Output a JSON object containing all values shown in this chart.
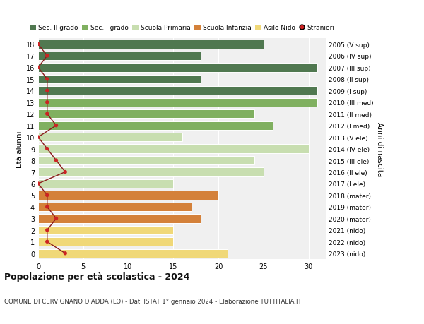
{
  "ages": [
    18,
    17,
    16,
    15,
    14,
    13,
    12,
    11,
    10,
    9,
    8,
    7,
    6,
    5,
    4,
    3,
    2,
    1,
    0
  ],
  "right_labels": [
    "2005 (V sup)",
    "2006 (IV sup)",
    "2007 (III sup)",
    "2008 (II sup)",
    "2009 (I sup)",
    "2010 (III med)",
    "2011 (II med)",
    "2012 (I med)",
    "2013 (V ele)",
    "2014 (IV ele)",
    "2015 (III ele)",
    "2016 (II ele)",
    "2017 (I ele)",
    "2018 (mater)",
    "2019 (mater)",
    "2020 (mater)",
    "2021 (nido)",
    "2022 (nido)",
    "2023 (nido)"
  ],
  "bar_values": [
    25,
    18,
    31,
    18,
    31,
    31,
    24,
    26,
    16,
    30,
    24,
    25,
    15,
    20,
    17,
    18,
    15,
    15,
    21
  ],
  "bar_colors": [
    "#507850",
    "#507850",
    "#507850",
    "#507850",
    "#507850",
    "#80b060",
    "#80b060",
    "#80b060",
    "#c8deb0",
    "#c8deb0",
    "#c8deb0",
    "#c8deb0",
    "#c8deb0",
    "#d4813a",
    "#d4813a",
    "#d4813a",
    "#f0d878",
    "#f0d878",
    "#f0d878"
  ],
  "stranieri_values": [
    0,
    1,
    0,
    1,
    1,
    1,
    1,
    2,
    0,
    1,
    2,
    3,
    0,
    1,
    1,
    2,
    1,
    1,
    3
  ],
  "legend_labels": [
    "Sec. II grado",
    "Sec. I grado",
    "Scuola Primaria",
    "Scuola Infanzia",
    "Asilo Nido",
    "Stranieri"
  ],
  "legend_colors": [
    "#507850",
    "#80b060",
    "#c8deb0",
    "#d4813a",
    "#f0d878",
    "#cc2222"
  ],
  "ylabel_left": "Età alunni",
  "ylabel_right": "Anni di nascita",
  "title": "Popolazione per età scolastica - 2024",
  "subtitle": "COMUNE DI CERVIGNANO D'ADDA (LO) - Dati ISTAT 1° gennaio 2024 - Elaborazione TUTTITALIA.IT",
  "xlim": [
    0,
    32
  ],
  "xticks": [
    0,
    5,
    10,
    15,
    20,
    25,
    30
  ]
}
